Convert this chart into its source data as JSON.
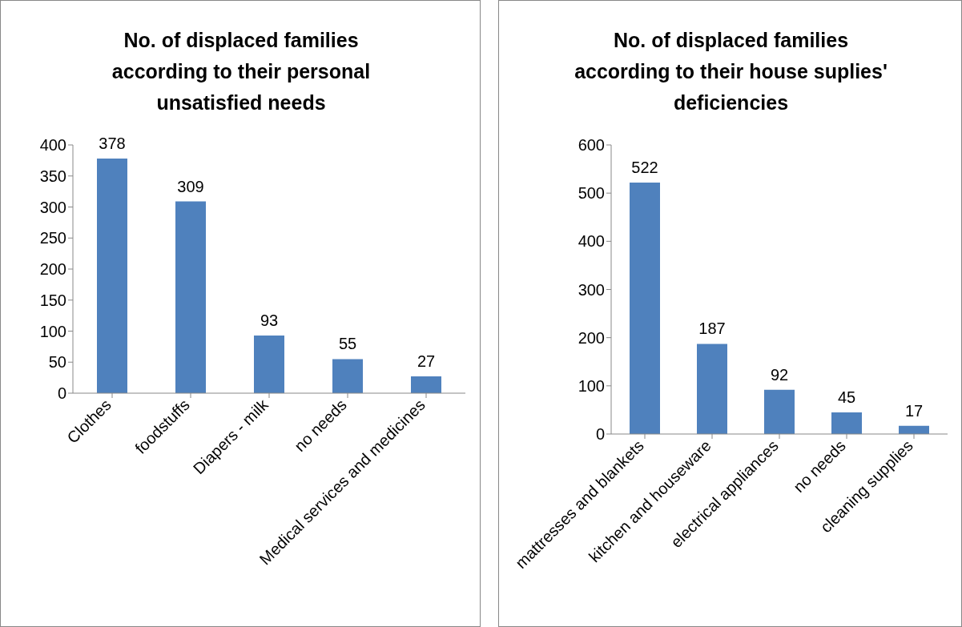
{
  "chart_data": [
    {
      "type": "bar",
      "title": "No. of displaced families according to their personal unsatisfied needs",
      "categories": [
        "Clothes",
        "foodstuffs",
        "Diapers - milk",
        "no needs",
        "Medical services and medicines"
      ],
      "values": [
        378,
        309,
        93,
        55,
        27
      ],
      "color": "#4f81bd",
      "ylim": [
        0,
        400
      ],
      "yticks": [
        0,
        50,
        100,
        150,
        200,
        250,
        300,
        350,
        400
      ],
      "data_labels": true
    },
    {
      "type": "bar",
      "title": "No. of displaced families according to their house suplies' deficiencies",
      "categories": [
        "mattresses and blankets",
        "kitchen and houseware",
        "electrical appliances",
        "no needs",
        "cleaning supplies"
      ],
      "values": [
        522,
        187,
        92,
        45,
        17
      ],
      "color": "#4f81bd",
      "ylim": [
        0,
        600
      ],
      "yticks": [
        0,
        100,
        200,
        300,
        400,
        500,
        600
      ],
      "data_labels": true
    }
  ]
}
